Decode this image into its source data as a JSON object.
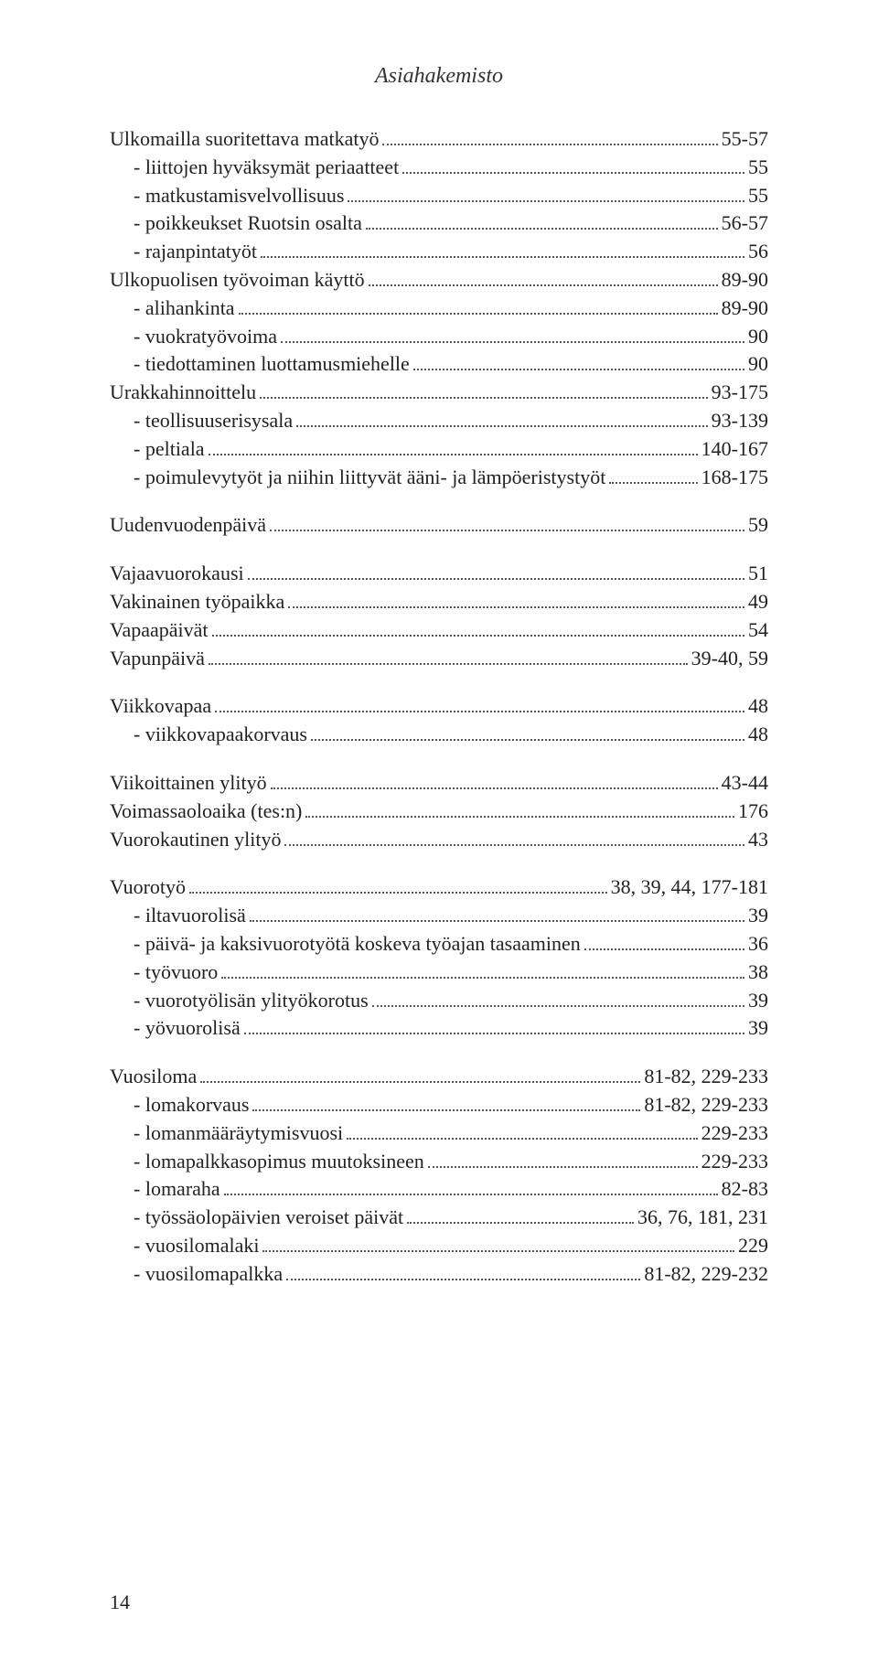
{
  "page": {
    "header": "Asiahakemisto",
    "footer_page_number": "14"
  },
  "entries": [
    {
      "label": "Ulkomailla suoritettava matkatyö",
      "page": "55-57",
      "indent": 0
    },
    {
      "label": "- liittojen hyväksymät periaatteet",
      "page": "55",
      "indent": 1
    },
    {
      "label": "- matkustamisvelvollisuus",
      "page": "55",
      "indent": 1
    },
    {
      "label": "- poikkeukset Ruotsin osalta",
      "page": "56-57",
      "indent": 1
    },
    {
      "label": "- rajanpintatyöt",
      "page": "56",
      "indent": 1
    },
    {
      "label": "Ulkopuolisen työvoiman käyttö",
      "page": "89-90",
      "indent": 0
    },
    {
      "label": "- alihankinta",
      "page": "89-90",
      "indent": 1
    },
    {
      "label": "- vuokratyövoima",
      "page": "90",
      "indent": 1
    },
    {
      "label": "- tiedottaminen luottamusmiehelle",
      "page": "90",
      "indent": 1
    },
    {
      "label": "Urakkahinnoittelu",
      "page": "93-175",
      "indent": 0
    },
    {
      "label": "- teollisuuserisysala",
      "page": "93-139",
      "indent": 1
    },
    {
      "label": "- peltiala",
      "page": "140-167",
      "indent": 1
    },
    {
      "label": "- poimulevytyöt ja niihin liittyvät ääni- ja lämpöeristystyöt",
      "page": "168-175",
      "indent": 1
    },
    {
      "gap": true
    },
    {
      "label": "Uudenvuodenpäivä",
      "page": "59",
      "indent": 0
    },
    {
      "gap": true
    },
    {
      "label": "Vajaavuorokausi",
      "page": "51",
      "indent": 0
    },
    {
      "label": "Vakinainen työpaikka",
      "page": "49",
      "indent": 0
    },
    {
      "label": "Vapaapäivät",
      "page": "54",
      "indent": 0
    },
    {
      "label": "Vapunpäivä",
      "page": "39-40, 59",
      "indent": 0
    },
    {
      "gap": true
    },
    {
      "label": "Viikkovapaa",
      "page": "48",
      "indent": 0
    },
    {
      "label": "- viikkovapaakorvaus",
      "page": "48",
      "indent": 1
    },
    {
      "gap": true
    },
    {
      "label": "Viikoittainen ylityö",
      "page": "43-44",
      "indent": 0
    },
    {
      "label": "Voimassaoloaika (tes:n)",
      "page": "176",
      "indent": 0
    },
    {
      "label": "Vuorokautinen ylityö",
      "page": "43",
      "indent": 0
    },
    {
      "gap": true
    },
    {
      "label": "Vuorotyö",
      "page": "38, 39, 44, 177-181",
      "indent": 0
    },
    {
      "label": "- iltavuorolisä",
      "page": "39",
      "indent": 1
    },
    {
      "label": "- päivä- ja kaksivuorotyötä koskeva työajan tasaaminen",
      "page": "36",
      "indent": 1
    },
    {
      "label": "- työvuoro",
      "page": "38",
      "indent": 1
    },
    {
      "label": "- vuorotyölisän ylityökorotus",
      "page": "39",
      "indent": 1
    },
    {
      "label": "- yövuorolisä",
      "page": "39",
      "indent": 1
    },
    {
      "gap": true
    },
    {
      "label": "Vuosiloma",
      "page": "81-82, 229-233",
      "indent": 0
    },
    {
      "label": "- lomakorvaus",
      "page": "81-82, 229-233",
      "indent": 1
    },
    {
      "label": "- lomanmääräytymisvuosi",
      "page": "229-233",
      "indent": 1
    },
    {
      "label": "- lomapalkkasopimus muutoksineen",
      "page": "229-233",
      "indent": 1
    },
    {
      "label": "- lomaraha",
      "page": "82-83",
      "indent": 1
    },
    {
      "label": "- työssäolopäivien veroiset päivät",
      "page": "36, 76, 181, 231",
      "indent": 1
    },
    {
      "label": "- vuosilomalaki",
      "page": "229",
      "indent": 1
    },
    {
      "label": "- vuosilomapalkka",
      "page": "81-82, 229-232",
      "indent": 1
    }
  ]
}
